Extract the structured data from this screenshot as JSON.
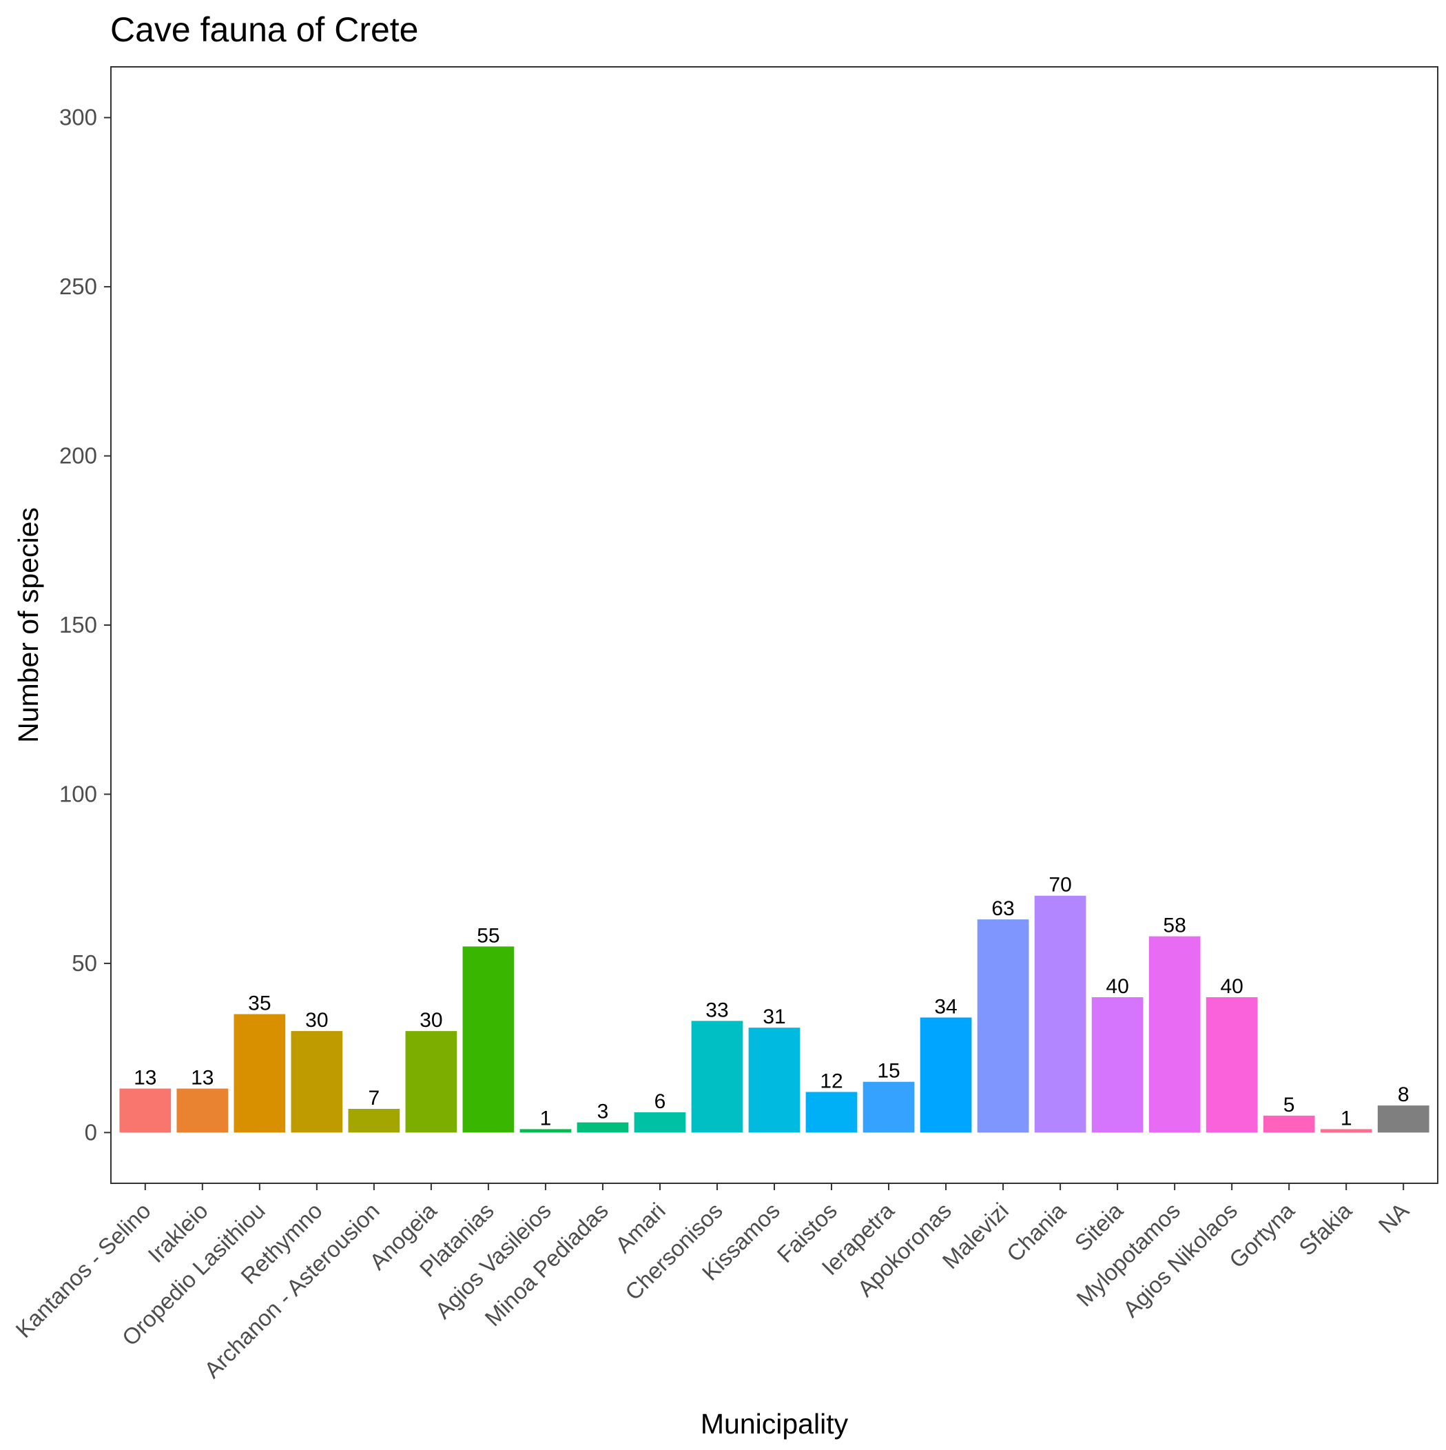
{
  "chart_data": {
    "type": "bar",
    "title": "Cave fauna of Crete",
    "xlabel": "Municipality",
    "ylabel": "Number of species",
    "ylim": [
      -15,
      315
    ],
    "yticks": [
      0,
      50,
      100,
      150,
      200,
      250,
      300
    ],
    "grid": false,
    "legend": "none",
    "categories": [
      "Kantanos - Selino",
      "Irakleio",
      "Oropedio Lasithiou",
      "Rethymno",
      "Archanon - Asterousion",
      "Anogeia",
      "Platanias",
      "Agios Vasileios",
      "Minoa Pediadas",
      "Amari",
      "Chersonisos",
      "Kissamos",
      "Faistos",
      "Ierapetra",
      "Apokoronas",
      "Malevizi",
      "Chania",
      "Siteia",
      "Mylopotamos",
      "Agios Nikolaos",
      "Gortyna",
      "Sfakia",
      "NA"
    ],
    "values": [
      13,
      13,
      35,
      30,
      7,
      30,
      55,
      1,
      3,
      6,
      33,
      31,
      12,
      15,
      34,
      63,
      70,
      40,
      58,
      40,
      5,
      1,
      8
    ],
    "data_labels": [
      "13",
      "13",
      "35",
      "30",
      "7",
      "30",
      "55",
      "1",
      "3",
      "6",
      "33",
      "31",
      "12",
      "15",
      "34",
      "63",
      "70",
      "40",
      "58",
      "40",
      "5",
      "1",
      "8"
    ],
    "colors": [
      "#F8766D",
      "#EA8331",
      "#D89000",
      "#C09B00",
      "#A3A500",
      "#7CAE00",
      "#39B600",
      "#00BB4E",
      "#00BF7D",
      "#00C1A3",
      "#00BFC4",
      "#00BAE0",
      "#00B0F6",
      "#35A2FF",
      "#00A5FF",
      "#7F96FF",
      "#B186FF",
      "#D575FE",
      "#E76BF3",
      "#FA62DB",
      "#FF62BC",
      "#FF6C91",
      "#7F7F7F"
    ]
  }
}
